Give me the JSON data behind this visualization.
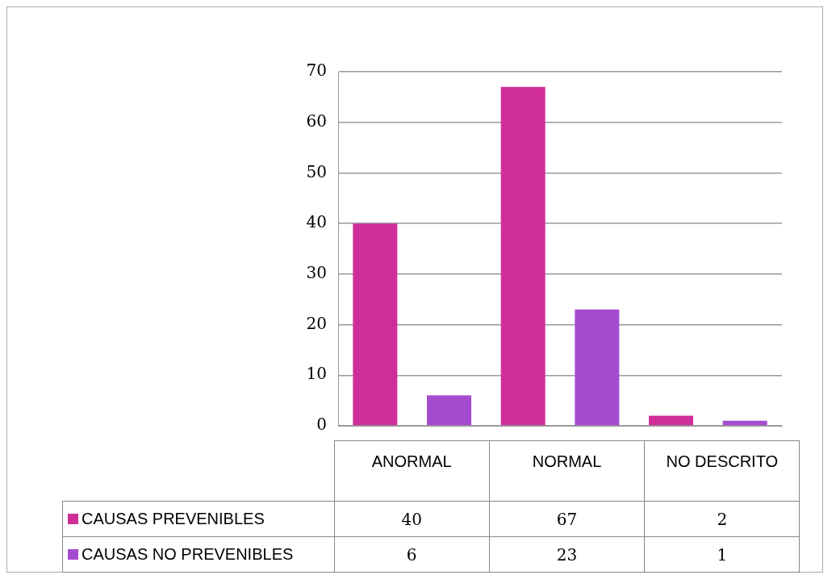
{
  "chart_data": {
    "type": "bar",
    "categories": [
      "ANORMAL",
      "NORMAL",
      "NO DESCRITO"
    ],
    "series": [
      {
        "name": "CAUSAS PREVENIBLES",
        "color": "#cf2e9a",
        "values": [
          40,
          67,
          2
        ]
      },
      {
        "name": "CAUSAS NO PREVENIBLES",
        "color": "#a44bd0",
        "values": [
          6,
          23,
          1
        ]
      }
    ],
    "ylim": [
      0,
      70
    ],
    "yticks": [
      0,
      10,
      20,
      30,
      40,
      50,
      60,
      70
    ],
    "grid": "y",
    "legend": "bottom",
    "data_labels": true
  }
}
